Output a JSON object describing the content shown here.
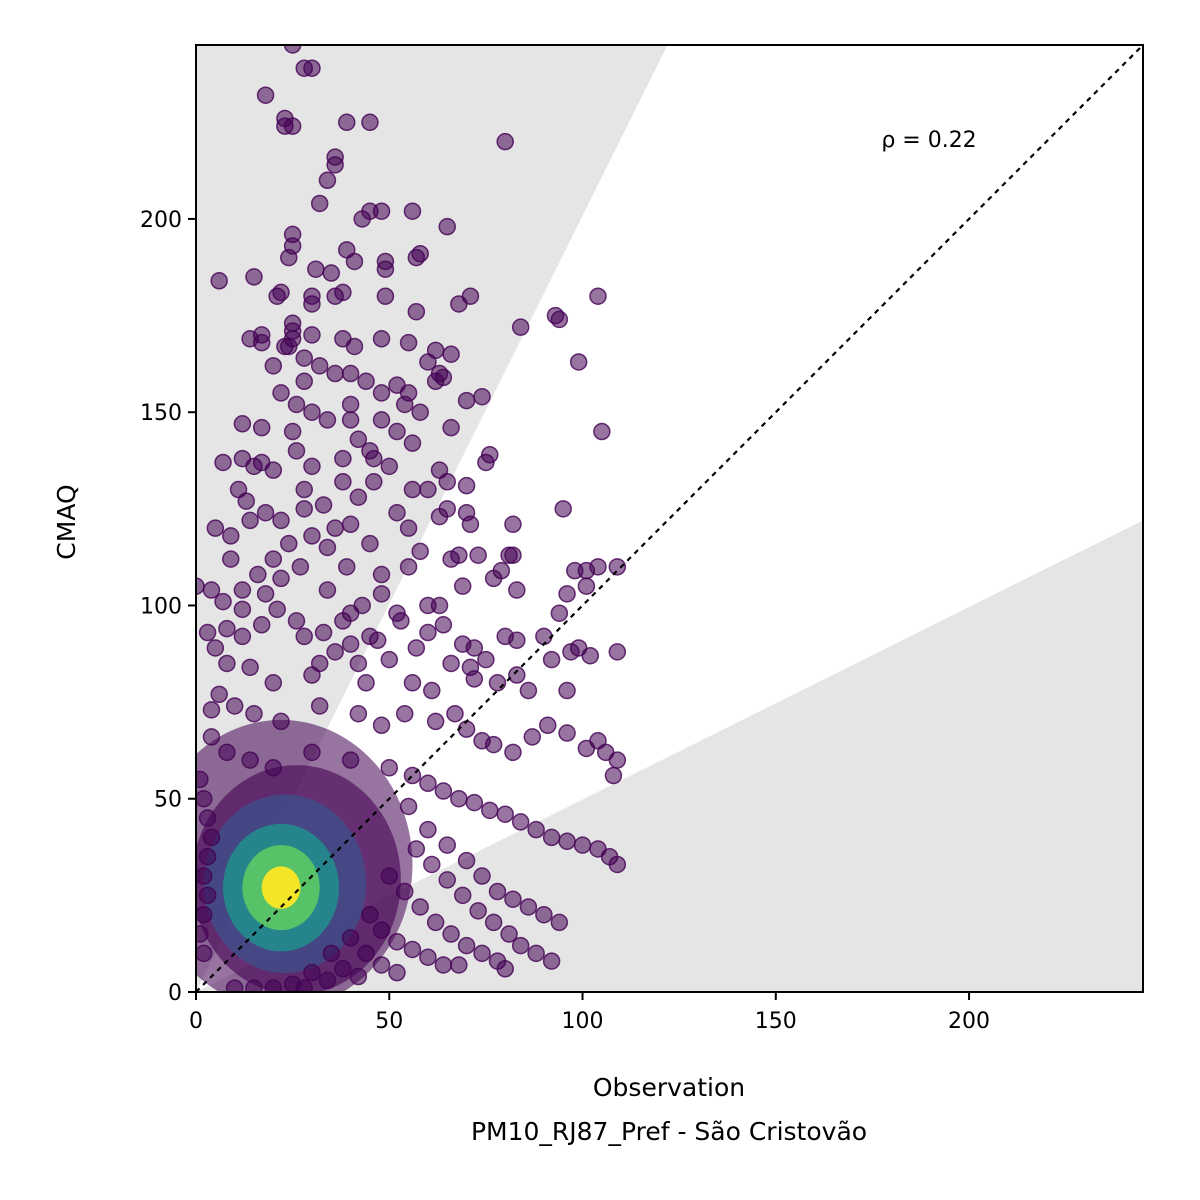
{
  "chart_data": {
    "type": "scatter",
    "xlabel": "Observation",
    "subtitle": "PM10_RJ87_Pref - São Cristovão",
    "ylabel": "CMAQ",
    "annotation": "ρ = 0.22",
    "xlim": [
      0,
      245
    ],
    "ylim": [
      0,
      245
    ],
    "xticks": [
      0,
      50,
      100,
      150,
      200
    ],
    "yticks": [
      0,
      50,
      100,
      150,
      200
    ],
    "grid": false,
    "one_to_one_line": true,
    "shaded_bands": {
      "upper": {
        "x_at_top": 122,
        "y_at_right": 245
      },
      "lower": {
        "x_at_right": 245,
        "y_at_right": 122
      }
    },
    "colormap": [
      "#440154",
      "#3b528b",
      "#21908d",
      "#5dc963",
      "#fde725"
    ],
    "density_center": [
      22,
      27
    ],
    "points": [
      [
        25,
        245
      ],
      [
        28,
        239
      ],
      [
        30,
        239
      ],
      [
        18,
        232
      ],
      [
        23,
        226
      ],
      [
        23,
        224
      ],
      [
        25,
        224
      ],
      [
        39,
        225
      ],
      [
        45,
        225
      ],
      [
        80,
        220
      ],
      [
        36,
        216
      ],
      [
        36,
        214
      ],
      [
        34,
        210
      ],
      [
        32,
        204
      ],
      [
        43,
        200
      ],
      [
        45,
        202
      ],
      [
        48,
        202
      ],
      [
        56,
        202
      ],
      [
        65,
        198
      ],
      [
        25,
        196
      ],
      [
        25,
        193
      ],
      [
        24,
        190
      ],
      [
        39,
        192
      ],
      [
        6,
        184
      ],
      [
        15,
        185
      ],
      [
        21,
        180
      ],
      [
        22,
        181
      ],
      [
        31,
        187
      ],
      [
        35,
        186
      ],
      [
        41,
        189
      ],
      [
        49,
        189
      ],
      [
        49,
        187
      ],
      [
        57,
        190
      ],
      [
        58,
        191
      ],
      [
        38,
        181
      ],
      [
        30,
        180
      ],
      [
        30,
        178
      ],
      [
        25,
        173
      ],
      [
        25,
        171
      ],
      [
        25,
        169
      ],
      [
        23,
        167
      ],
      [
        17,
        170
      ],
      [
        14,
        169
      ],
      [
        17,
        168
      ],
      [
        24,
        167
      ],
      [
        36,
        180
      ],
      [
        49,
        180
      ],
      [
        68,
        178
      ],
      [
        71,
        180
      ],
      [
        57,
        176
      ],
      [
        84,
        172
      ],
      [
        93,
        175
      ],
      [
        94,
        174
      ],
      [
        104,
        180
      ],
      [
        38,
        169
      ],
      [
        41,
        167
      ],
      [
        48,
        169
      ],
      [
        55,
        168
      ],
      [
        62,
        166
      ],
      [
        66,
        165
      ],
      [
        60,
        163
      ],
      [
        64,
        159
      ],
      [
        99,
        163
      ],
      [
        12,
        147
      ],
      [
        17,
        146
      ],
      [
        25,
        145
      ],
      [
        40,
        152
      ],
      [
        48,
        155
      ],
      [
        52,
        157
      ],
      [
        55,
        155
      ],
      [
        62,
        158
      ],
      [
        63,
        160
      ],
      [
        70,
        153
      ],
      [
        74,
        154
      ],
      [
        66,
        146
      ],
      [
        76,
        139
      ],
      [
        75,
        137
      ],
      [
        105,
        145
      ],
      [
        7,
        137
      ],
      [
        12,
        138
      ],
      [
        15,
        136
      ],
      [
        17,
        137
      ],
      [
        20,
        135
      ],
      [
        26,
        140
      ],
      [
        30,
        136
      ],
      [
        38,
        138
      ],
      [
        45,
        140
      ],
      [
        50,
        136
      ],
      [
        56,
        130
      ],
      [
        60,
        130
      ],
      [
        63,
        135
      ],
      [
        65,
        132
      ],
      [
        70,
        131
      ],
      [
        11,
        130
      ],
      [
        13,
        127
      ],
      [
        5,
        120
      ],
      [
        9,
        118
      ],
      [
        14,
        122
      ],
      [
        18,
        124
      ],
      [
        22,
        122
      ],
      [
        28,
        125
      ],
      [
        30,
        118
      ],
      [
        34,
        115
      ],
      [
        40,
        121
      ],
      [
        45,
        116
      ],
      [
        52,
        124
      ],
      [
        55,
        120
      ],
      [
        58,
        114
      ],
      [
        63,
        123
      ],
      [
        65,
        125
      ],
      [
        70,
        124
      ],
      [
        71,
        121
      ],
      [
        73,
        113
      ],
      [
        82,
        121
      ],
      [
        81,
        113
      ],
      [
        95,
        125
      ],
      [
        101,
        109
      ],
      [
        104,
        110
      ],
      [
        109,
        110
      ],
      [
        9,
        112
      ],
      [
        4,
        104
      ],
      [
        7,
        101
      ],
      [
        0,
        105
      ],
      [
        12,
        99
      ],
      [
        18,
        103
      ],
      [
        22,
        107
      ],
      [
        27,
        110
      ],
      [
        34,
        104
      ],
      [
        39,
        110
      ],
      [
        48,
        108
      ],
      [
        55,
        110
      ],
      [
        60,
        100
      ],
      [
        63,
        100
      ],
      [
        66,
        112
      ],
      [
        68,
        113
      ],
      [
        69,
        105
      ],
      [
        77,
        107
      ],
      [
        79,
        109
      ],
      [
        82,
        113
      ],
      [
        83,
        104
      ],
      [
        94,
        98
      ],
      [
        96,
        103
      ],
      [
        98,
        109
      ],
      [
        101,
        105
      ],
      [
        3,
        93
      ],
      [
        5,
        89
      ],
      [
        8,
        94
      ],
      [
        12,
        92
      ],
      [
        17,
        95
      ],
      [
        21,
        99
      ],
      [
        26,
        96
      ],
      [
        33,
        93
      ],
      [
        40,
        98
      ],
      [
        47,
        91
      ],
      [
        53,
        96
      ],
      [
        57,
        89
      ],
      [
        60,
        93
      ],
      [
        64,
        95
      ],
      [
        69,
        90
      ],
      [
        72,
        89
      ],
      [
        71,
        84
      ],
      [
        75,
        86
      ],
      [
        80,
        92
      ],
      [
        83,
        91
      ],
      [
        90,
        92
      ],
      [
        92,
        86
      ],
      [
        97,
        88
      ],
      [
        99,
        89
      ],
      [
        102,
        87
      ],
      [
        109,
        88
      ],
      [
        8,
        85
      ],
      [
        14,
        84
      ],
      [
        20,
        80
      ],
      [
        30,
        82
      ],
      [
        42,
        85
      ],
      [
        50,
        86
      ],
      [
        56,
        80
      ],
      [
        61,
        78
      ],
      [
        66,
        85
      ],
      [
        72,
        81
      ],
      [
        78,
        80
      ],
      [
        83,
        82
      ],
      [
        86,
        78
      ],
      [
        96,
        78
      ],
      [
        6,
        77
      ],
      [
        4,
        73
      ],
      [
        10,
        74
      ],
      [
        15,
        72
      ],
      [
        22,
        70
      ],
      [
        32,
        74
      ],
      [
        42,
        72
      ],
      [
        48,
        69
      ],
      [
        54,
        72
      ],
      [
        62,
        70
      ],
      [
        67,
        72
      ],
      [
        70,
        68
      ],
      [
        74,
        65
      ],
      [
        77,
        64
      ],
      [
        82,
        62
      ],
      [
        87,
        66
      ],
      [
        91,
        69
      ],
      [
        96,
        67
      ],
      [
        101,
        63
      ],
      [
        104,
        65
      ],
      [
        106,
        62
      ],
      [
        109,
        60
      ],
      [
        108,
        56
      ],
      [
        4,
        66
      ],
      [
        8,
        62
      ],
      [
        14,
        60
      ],
      [
        20,
        58
      ],
      [
        30,
        62
      ],
      [
        40,
        60
      ],
      [
        50,
        58
      ],
      [
        56,
        56
      ],
      [
        60,
        54
      ],
      [
        64,
        52
      ],
      [
        68,
        50
      ],
      [
        72,
        49
      ],
      [
        76,
        47
      ],
      [
        80,
        46
      ],
      [
        84,
        44
      ],
      [
        88,
        42
      ],
      [
        92,
        40
      ],
      [
        96,
        39
      ],
      [
        100,
        38
      ],
      [
        104,
        37
      ],
      [
        107,
        35
      ],
      [
        109,
        33
      ],
      [
        1,
        55
      ],
      [
        2,
        50
      ],
      [
        3,
        45
      ],
      [
        4,
        40
      ],
      [
        3,
        35
      ],
      [
        2,
        30
      ],
      [
        3,
        25
      ],
      [
        2,
        20
      ],
      [
        1,
        15
      ],
      [
        2,
        10
      ],
      [
        55,
        48
      ],
      [
        60,
        42
      ],
      [
        65,
        38
      ],
      [
        70,
        34
      ],
      [
        74,
        30
      ],
      [
        78,
        26
      ],
      [
        82,
        24
      ],
      [
        86,
        22
      ],
      [
        90,
        20
      ],
      [
        94,
        18
      ],
      [
        57,
        37
      ],
      [
        61,
        33
      ],
      [
        65,
        29
      ],
      [
        69,
        25
      ],
      [
        73,
        21
      ],
      [
        77,
        18
      ],
      [
        81,
        15
      ],
      [
        84,
        12
      ],
      [
        88,
        10
      ],
      [
        92,
        8
      ],
      [
        50,
        30
      ],
      [
        54,
        26
      ],
      [
        58,
        22
      ],
      [
        62,
        18
      ],
      [
        66,
        15
      ],
      [
        70,
        12
      ],
      [
        74,
        10
      ],
      [
        78,
        8
      ],
      [
        80,
        6
      ],
      [
        68,
        7
      ],
      [
        45,
        20
      ],
      [
        48,
        16
      ],
      [
        52,
        13
      ],
      [
        56,
        11
      ],
      [
        60,
        9
      ],
      [
        64,
        7
      ],
      [
        40,
        14
      ],
      [
        44,
        10
      ],
      [
        48,
        7
      ],
      [
        52,
        5
      ],
      [
        35,
        10
      ],
      [
        38,
        6
      ],
      [
        42,
        4
      ],
      [
        30,
        5
      ],
      [
        34,
        3
      ],
      [
        25,
        2
      ],
      [
        28,
        1
      ],
      [
        20,
        1
      ],
      [
        15,
        1
      ],
      [
        10,
        1
      ],
      [
        40,
        90
      ],
      [
        45,
        92
      ],
      [
        38,
        96
      ],
      [
        43,
        100
      ],
      [
        48,
        103
      ],
      [
        52,
        98
      ],
      [
        36,
        88
      ],
      [
        32,
        85
      ],
      [
        28,
        92
      ],
      [
        44,
        80
      ],
      [
        36,
        120
      ],
      [
        33,
        126
      ],
      [
        42,
        128
      ],
      [
        46,
        132
      ],
      [
        38,
        132
      ],
      [
        28,
        130
      ],
      [
        24,
        116
      ],
      [
        20,
        112
      ],
      [
        16,
        108
      ],
      [
        12,
        104
      ],
      [
        30,
        150
      ],
      [
        34,
        148
      ],
      [
        26,
        152
      ],
      [
        22,
        155
      ],
      [
        28,
        158
      ],
      [
        32,
        162
      ],
      [
        36,
        160
      ],
      [
        40,
        148
      ],
      [
        42,
        143
      ],
      [
        46,
        138
      ],
      [
        52,
        145
      ],
      [
        56,
        142
      ],
      [
        58,
        150
      ],
      [
        54,
        152
      ],
      [
        48,
        148
      ],
      [
        44,
        158
      ],
      [
        40,
        160
      ],
      [
        30,
        170
      ],
      [
        28,
        164
      ],
      [
        20,
        162
      ]
    ]
  }
}
